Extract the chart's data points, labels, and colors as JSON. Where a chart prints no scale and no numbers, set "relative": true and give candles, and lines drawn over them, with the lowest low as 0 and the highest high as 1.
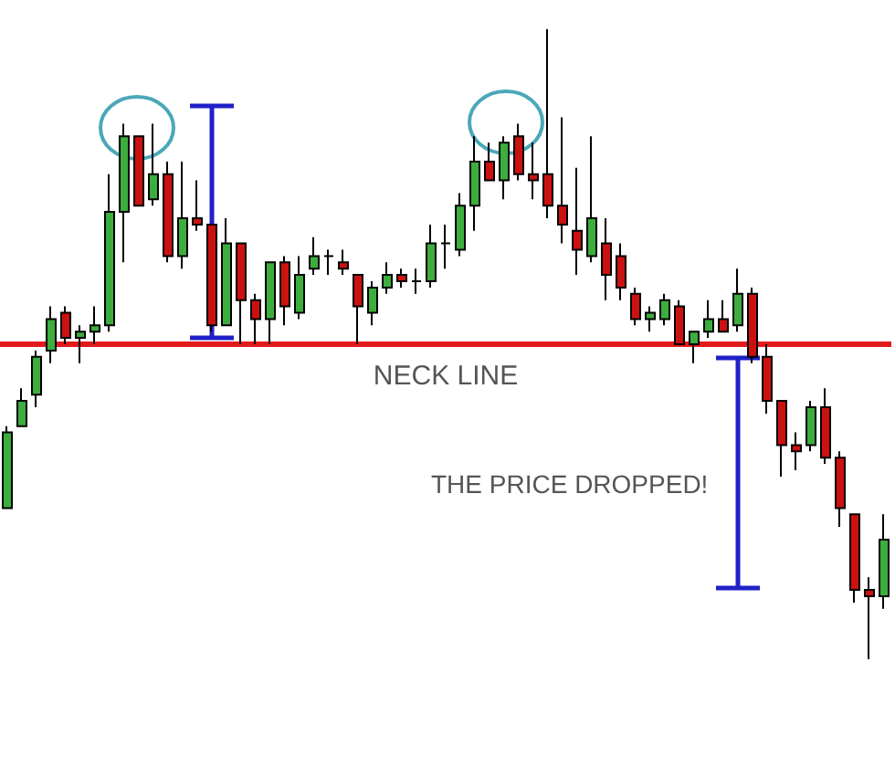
{
  "chart_data": {
    "type": "candlestick",
    "relative": true,
    "categories": [
      null,
      null,
      null,
      null,
      null,
      null,
      null,
      null,
      null,
      null,
      null,
      null,
      null,
      null,
      null,
      null,
      null,
      null,
      null,
      null,
      null,
      null,
      null,
      null,
      null,
      null,
      null,
      null,
      null,
      null,
      null,
      null,
      null,
      null,
      null,
      null,
      null,
      null,
      null,
      null,
      null,
      null,
      null,
      null,
      null,
      null,
      null,
      null,
      null,
      null,
      null,
      null,
      null,
      null,
      null,
      null,
      null,
      null,
      null,
      null,
      null
    ],
    "ohlc": [
      [
        0.24,
        0.37,
        0.24,
        0.36
      ],
      [
        0.37,
        0.43,
        0.37,
        0.41
      ],
      [
        0.42,
        0.49,
        0.4,
        0.48
      ],
      [
        0.49,
        0.56,
        0.47,
        0.54
      ],
      [
        0.55,
        0.56,
        0.5,
        0.51
      ],
      [
        0.51,
        0.53,
        0.47,
        0.52
      ],
      [
        0.52,
        0.56,
        0.5,
        0.53
      ],
      [
        0.53,
        0.77,
        0.52,
        0.71
      ],
      [
        0.71,
        0.85,
        0.63,
        0.83
      ],
      [
        0.83,
        0.83,
        0.72,
        0.72
      ],
      [
        0.73,
        0.85,
        0.72,
        0.77
      ],
      [
        0.77,
        0.79,
        0.63,
        0.64
      ],
      [
        0.64,
        0.79,
        0.62,
        0.7
      ],
      [
        0.7,
        0.76,
        0.68,
        0.69
      ],
      [
        0.69,
        0.69,
        0.52,
        0.53
      ],
      [
        0.53,
        0.7,
        0.53,
        0.66
      ],
      [
        0.66,
        0.66,
        0.5,
        0.57
      ],
      [
        0.57,
        0.58,
        0.5,
        0.54
      ],
      [
        0.54,
        0.63,
        0.5,
        0.63
      ],
      [
        0.63,
        0.64,
        0.53,
        0.56
      ],
      [
        0.55,
        0.64,
        0.54,
        0.61
      ],
      [
        0.62,
        0.67,
        0.61,
        0.64
      ],
      [
        0.64,
        0.65,
        0.61,
        0.64
      ],
      [
        0.63,
        0.65,
        0.61,
        0.62
      ],
      [
        0.61,
        0.61,
        0.5,
        0.56
      ],
      [
        0.55,
        0.6,
        0.53,
        0.59
      ],
      [
        0.59,
        0.63,
        0.58,
        0.61
      ],
      [
        0.61,
        0.62,
        0.59,
        0.6
      ],
      [
        0.6,
        0.62,
        0.58,
        0.6
      ],
      [
        0.6,
        0.69,
        0.59,
        0.66
      ],
      [
        0.66,
        0.69,
        0.62,
        0.66
      ],
      [
        0.65,
        0.74,
        0.64,
        0.72
      ],
      [
        0.72,
        0.83,
        0.68,
        0.79
      ],
      [
        0.79,
        0.82,
        0.76,
        0.76
      ],
      [
        0.76,
        0.83,
        0.73,
        0.82
      ],
      [
        0.83,
        0.85,
        0.76,
        0.77
      ],
      [
        0.77,
        0.82,
        0.73,
        0.76
      ],
      [
        0.77,
        1,
        0.7,
        0.72
      ],
      [
        0.72,
        0.86,
        0.66,
        0.69
      ],
      [
        0.68,
        0.78,
        0.61,
        0.65
      ],
      [
        0.64,
        0.83,
        0.63,
        0.7
      ],
      [
        0.66,
        0.7,
        0.57,
        0.61
      ],
      [
        0.64,
        0.66,
        0.57,
        0.59
      ],
      [
        0.58,
        0.59,
        0.53,
        0.54
      ],
      [
        0.54,
        0.56,
        0.52,
        0.55
      ],
      [
        0.54,
        0.58,
        0.53,
        0.57
      ],
      [
        0.56,
        0.57,
        0.5,
        0.5
      ],
      [
        0.5,
        0.52,
        0.47,
        0.52
      ],
      [
        0.52,
        0.57,
        0.51,
        0.54
      ],
      [
        0.54,
        0.57,
        0.52,
        0.52
      ],
      [
        0.53,
        0.62,
        0.52,
        0.58
      ],
      [
        0.58,
        0.59,
        0.47,
        0.48
      ],
      [
        0.48,
        0.5,
        0.39,
        0.41
      ],
      [
        0.41,
        0.41,
        0.29,
        0.34
      ],
      [
        0.34,
        0.36,
        0.3,
        0.33
      ],
      [
        0.34,
        0.41,
        0.33,
        0.4
      ],
      [
        0.4,
        0.43,
        0.31,
        0.32
      ],
      [
        0.32,
        0.33,
        0.21,
        0.24
      ],
      [
        0.23,
        0.23,
        0.09,
        0.11
      ],
      [
        0.11,
        0.13,
        0,
        0.1
      ],
      [
        0.1,
        0.23,
        0.08,
        0.19
      ]
    ],
    "colors": [
      "#3dae3d",
      "#3dae3d",
      "#3dae3d",
      "#3dae3d",
      "#cc1111",
      "#3dae3d",
      "#3dae3d",
      "#3dae3d",
      "#3dae3d",
      "#cc1111",
      "#3dae3d",
      "#cc1111",
      "#3dae3d",
      "#cc1111",
      "#cc1111",
      "#3dae3d",
      "#cc1111",
      "#cc1111",
      "#3dae3d",
      "#cc1111",
      "#3dae3d",
      "#3dae3d",
      "#000000",
      "#cc1111",
      "#cc1111",
      "#3dae3d",
      "#3dae3d",
      "#cc1111",
      "#000000",
      "#3dae3d",
      "#000000",
      "#3dae3d",
      "#3dae3d",
      "#cc1111",
      "#3dae3d",
      "#cc1111",
      "#cc1111",
      "#cc1111",
      "#cc1111",
      "#cc1111",
      "#3dae3d",
      "#cc1111",
      "#cc1111",
      "#cc1111",
      "#3dae3d",
      "#3dae3d",
      "#cc1111",
      "#3dae3d",
      "#3dae3d",
      "#cc1111",
      "#3dae3d",
      "#cc1111",
      "#cc1111",
      "#cc1111",
      "#cc1111",
      "#3dae3d",
      "#cc1111",
      "#cc1111",
      "#cc1111",
      "#cc1111",
      "#3dae3d"
    ],
    "ref_lines": [
      {
        "axis": "y",
        "value": 0.5,
        "label": "NECK LINE",
        "color": "#e31a1c"
      }
    ],
    "annotations": [
      "THE PRICE DROPPED!"
    ]
  }
}
